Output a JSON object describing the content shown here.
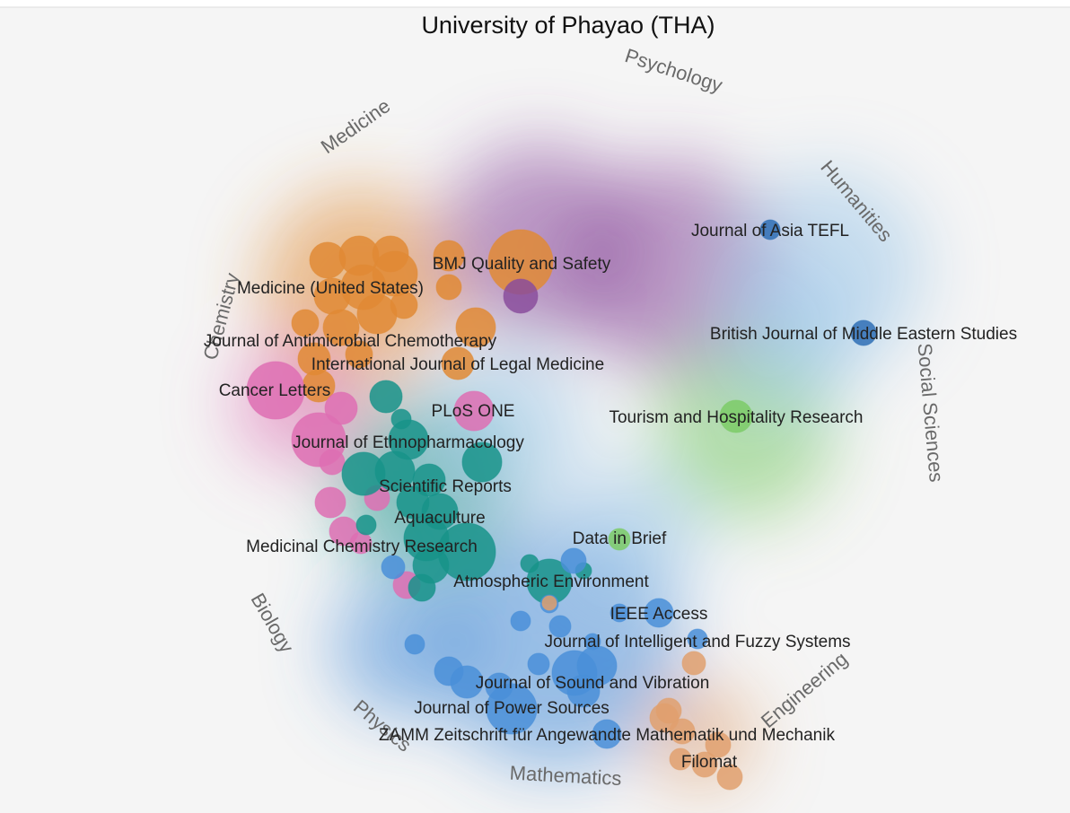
{
  "title": "University of Phayao (THA)",
  "fields": [
    "Psychology",
    "Medicine",
    "Humanities",
    "Chemistry",
    "Social Sciences",
    "Biology",
    "Physics",
    "Mathematics",
    "Engineering"
  ],
  "journals": [
    "Journal of Asia TEFL",
    "BMJ Quality and Safety",
    "Medicine (United States)",
    "British Journal of Middle Eastern Studies",
    "Journal of Antimicrobial Chemotherapy",
    "International Journal of Legal Medicine",
    "Cancer Letters",
    "PLoS ONE",
    "Tourism and Hospitality Research",
    "Journal of Ethnopharmacology",
    "Scientific Reports",
    "Aquaculture",
    "Medicinal Chemistry Research",
    "Data in Brief",
    "Atmospheric Environment",
    "IEEE Access",
    "Journal of Intelligent and Fuzzy Systems",
    "Journal of Sound and Vibration",
    "Journal of Power Sources",
    "ZAMM Zeitschrift für Angewandte Mathematik und Mechanik",
    "Filomat"
  ]
}
